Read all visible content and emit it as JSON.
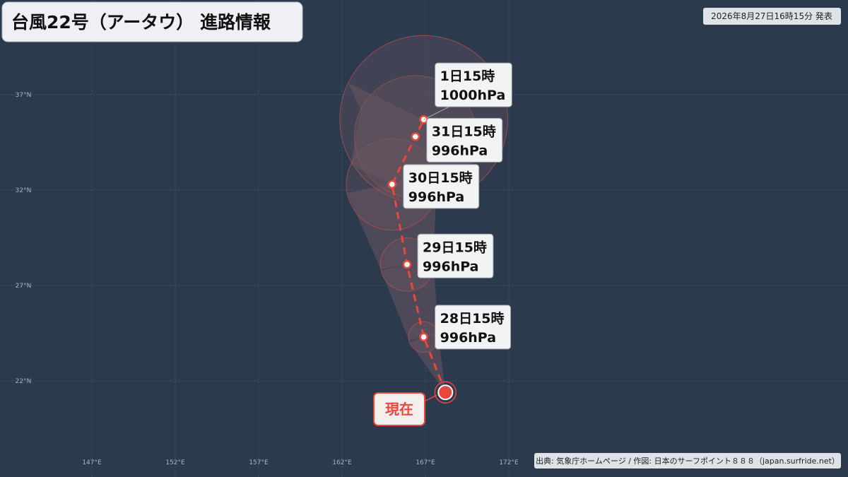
{
  "header": {
    "title": "台風22号（アータウ） 進路情報",
    "issued": "2026年8月27日16時15分 発表"
  },
  "axes": {
    "xticks": [
      {
        "value": 147,
        "label": "147°E"
      },
      {
        "value": 152,
        "label": "152°E"
      },
      {
        "value": 157,
        "label": "157°E"
      },
      {
        "value": 162,
        "label": "162°E"
      },
      {
        "value": 167,
        "label": "167°E"
      },
      {
        "value": 172,
        "label": "172°E"
      }
    ],
    "yticks": [
      {
        "value": 37,
        "label": "37°N"
      },
      {
        "value": 32,
        "label": "32°N"
      },
      {
        "value": 27,
        "label": "27°N"
      },
      {
        "value": 22,
        "label": "22°N"
      }
    ]
  },
  "current": {
    "label": "現在",
    "lon": 168.2,
    "lat": 21.4
  },
  "forecast": {
    "points": [
      {
        "time": "28日15時",
        "pressure": "996hPa",
        "lon": 166.9,
        "lat": 24.3,
        "radius": 0.8
      },
      {
        "time": "29日15時",
        "pressure": "996hPa",
        "lon": 165.9,
        "lat": 28.1,
        "radius": 1.4
      },
      {
        "time": "30日15時",
        "pressure": "996hPa",
        "lon": 165.0,
        "lat": 32.3,
        "radius": 2.4
      },
      {
        "time": "31日15時",
        "pressure": "996hPa",
        "lon": 166.4,
        "lat": 34.8,
        "radius": 3.2
      },
      {
        "time": "1日15時",
        "pressure": "1000hPa",
        "lon": 166.9,
        "lat": 35.7,
        "radius": 4.4
      }
    ]
  },
  "source": "出典: 気象庁ホームページ / 作図: 日本のサーフポイント８８８（japan.surfride.net）"
}
